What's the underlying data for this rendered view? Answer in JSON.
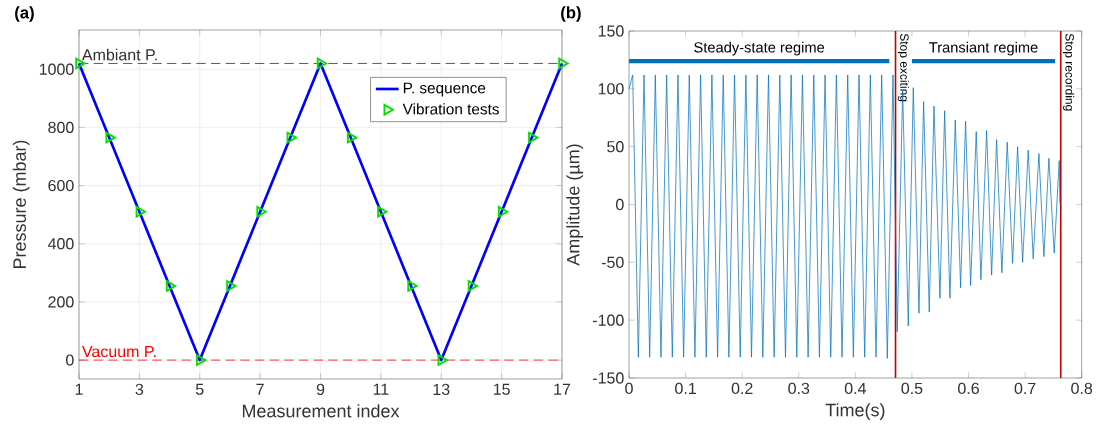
{
  "chart_data": [
    {
      "type": "line",
      "title": "(a)",
      "xlabel": "Measurement index",
      "ylabel": "Pressure (mbar)",
      "x": [
        1,
        2,
        3,
        4,
        5,
        6,
        7,
        8,
        9,
        10,
        11,
        12,
        13,
        14,
        15,
        16,
        17
      ],
      "series": [
        {
          "name": "P. sequence",
          "type": "line",
          "color": "#0000ff",
          "values": [
            1020,
            765,
            510,
            255,
            0,
            255,
            510,
            765,
            1020,
            765,
            510,
            255,
            0,
            255,
            510,
            765,
            1020
          ]
        },
        {
          "name": "Vibration tests",
          "type": "scatter",
          "marker": "triangle",
          "color": "#00e000",
          "values": [
            1020,
            765,
            510,
            255,
            0,
            255,
            510,
            765,
            1020,
            765,
            510,
            255,
            0,
            255,
            510,
            765,
            1020
          ]
        }
      ],
      "xlim": [
        1,
        17
      ],
      "xticks": [
        1,
        3,
        5,
        7,
        9,
        11,
        13,
        15,
        17
      ],
      "ylim": [
        -65,
        1135
      ],
      "yticks": [
        0,
        200,
        400,
        600,
        800,
        1000
      ],
      "grid": true,
      "legend": "top right",
      "ref_lines": [
        {
          "axis": "y",
          "value": 1020,
          "label": "Ambiant P.",
          "color": "#303030",
          "line_style": "dashed"
        },
        {
          "axis": "y",
          "value": 0,
          "label": "Vacuum P.",
          "color": "#ff0000",
          "line_style": "dashed"
        }
      ]
    },
    {
      "type": "line",
      "title": "(b)",
      "xlabel": "Time(s)",
      "ylabel": "Amplitude (µm)",
      "series": [
        {
          "color": "#0072bd",
          "x": [
            0,
            0.0065,
            0.0165,
            0.0265,
            0.0365,
            0.0465,
            0.0565,
            0.0665,
            0.0765,
            0.0865,
            0.0965,
            0.1065,
            0.1165,
            0.1265,
            0.1365,
            0.1465,
            0.1565,
            0.1665,
            0.1765,
            0.1865,
            0.1965,
            0.2065,
            0.2165,
            0.2265,
            0.2365,
            0.2465,
            0.2565,
            0.2665,
            0.2765,
            0.2865,
            0.2965,
            0.3065,
            0.3165,
            0.3265,
            0.3365,
            0.3465,
            0.3565,
            0.3665,
            0.3765,
            0.3865,
            0.3965,
            0.4065,
            0.4165,
            0.4265,
            0.4365,
            0.4465,
            0.4565,
            0.4665,
            0.474,
            0.4836,
            0.4935,
            0.5024,
            0.5124,
            0.5206,
            0.5306,
            0.5389,
            0.5495,
            0.5578,
            0.5671,
            0.5766,
            0.586,
            0.5948,
            0.6037,
            0.6136,
            0.6219,
            0.632,
            0.6408,
            0.6496,
            0.659,
            0.6684,
            0.6779,
            0.6867,
            0.6956,
            0.7055,
            0.7143,
            0.7244,
            0.7332,
            0.742,
            0.7514,
            0.7603,
            0.7615
          ],
          "values": [
            100,
            112,
            -132,
            112,
            -132,
            112,
            -132,
            112,
            -132,
            112,
            -132,
            112,
            -132,
            112,
            -132,
            112,
            -132,
            112,
            -132,
            112,
            -132,
            112,
            -132,
            112,
            -132,
            112,
            -132,
            112,
            -132,
            112,
            -132,
            112,
            -132,
            112,
            -132,
            112,
            -132,
            112,
            -132,
            112,
            -132,
            112,
            -132,
            112,
            -132,
            112,
            -133,
            112,
            -110,
            99,
            -105,
            101,
            -94,
            89,
            -93,
            85,
            -81,
            81,
            -81,
            73,
            -72,
            72,
            -70,
            63,
            -65,
            64,
            -61,
            56,
            -59,
            54,
            -51,
            50,
            -50,
            47,
            -47,
            44,
            -45,
            40,
            -42,
            38,
            1
          ]
        },
        {
          "type": "line",
          "color": "#0072bd",
          "x": [
            0,
            0.46
          ],
          "values": [
            124,
            124
          ]
        },
        {
          "type": "line",
          "color": "#0072bd",
          "x": [
            0.5,
            0.753
          ],
          "values": [
            124,
            124
          ]
        }
      ],
      "xlim": [
        0,
        0.8
      ],
      "xticks": [
        0,
        0.1,
        0.2,
        0.3,
        0.4,
        0.5,
        0.6,
        0.7,
        0.8
      ],
      "ylim": [
        -150,
        150
      ],
      "yticks": [
        -150,
        -100,
        -50,
        0,
        50,
        100,
        150
      ],
      "ref_lines": [
        {
          "axis": "x",
          "value": 0.471,
          "label": "Stop exciting",
          "color": "#c00000"
        },
        {
          "axis": "x",
          "value": 0.763,
          "label": "Stop recording",
          "color": "#c00000"
        }
      ],
      "annotations": [
        {
          "text": "Steady-state regime",
          "x": 0.23,
          "y": 124
        },
        {
          "text": "Transiant regime",
          "x": 0.6265,
          "y": 124
        }
      ]
    }
  ]
}
